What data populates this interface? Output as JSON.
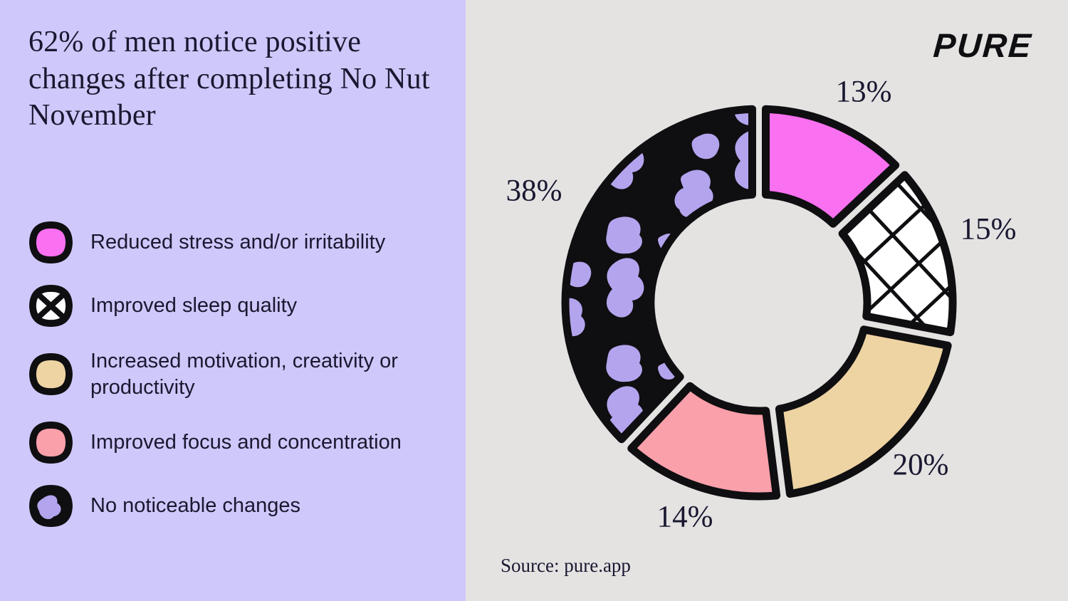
{
  "title": "62% of men notice positive changes after completing No Nut November",
  "brand": "PURE",
  "source": "Source: pure.app",
  "colors": {
    "left_bg": "#cfc8fa",
    "right_bg": "#e4e3e2",
    "ink": "#0f0e11",
    "text": "#1a1730",
    "purple": "#b4a4ee"
  },
  "chart_data": {
    "type": "pie",
    "subtype": "donut",
    "title": "62% of men notice positive changes after completing No Nut November",
    "legend_position": "left",
    "start_angle_deg": 0,
    "direction": "clockwise",
    "total": 100,
    "segments": [
      {
        "label": "Reduced stress and/or irritability",
        "value": 13,
        "display": "13%",
        "fill": "#f970f0",
        "pattern": "solid"
      },
      {
        "label": "Improved sleep quality",
        "value": 15,
        "display": "15%",
        "fill": "#ffffff",
        "pattern": "crosshatch"
      },
      {
        "label": "Increased motivation, creativity or productivity",
        "value": 20,
        "display": "20%",
        "fill": "#eed4a3",
        "pattern": "solid"
      },
      {
        "label": "Improved focus and concentration",
        "value": 14,
        "display": "14%",
        "fill": "#f9a0aa",
        "pattern": "solid"
      },
      {
        "label": "No noticeable changes",
        "value": 38,
        "display": "38%",
        "fill": "#0f0e11",
        "pattern": "cow"
      }
    ]
  }
}
